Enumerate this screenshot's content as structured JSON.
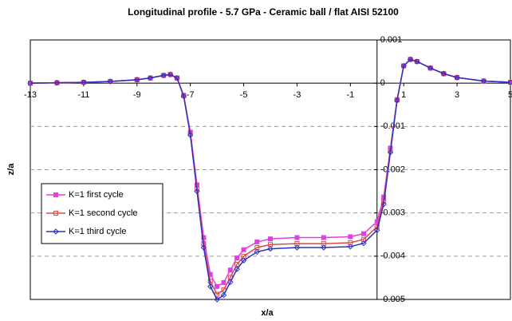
{
  "chart_data": {
    "type": "line",
    "title": "Longitudinal profile - 5.7 GPa - Ceramic ball / flat AISI 52100",
    "x_label": "x/a",
    "y_label": "z/a",
    "x": [
      -13,
      -12,
      -11,
      -10,
      -9,
      -8.5,
      -8,
      -7.75,
      -7.5,
      -7.25,
      -7,
      -6.75,
      -6.5,
      -6.25,
      -6,
      -5.75,
      -5.5,
      -5.25,
      -5,
      -4.5,
      -4,
      -3,
      -2,
      -1,
      -0.5,
      0,
      0.25,
      0.5,
      0.75,
      1,
      1.25,
      1.5,
      2,
      2.5,
      3,
      4,
      5
    ],
    "series": [
      {
        "name": "K=1 first cycle",
        "color": "#e040e0",
        "values": [
          0,
          1e-05,
          2e-05,
          4e-05,
          8e-05,
          0.00012,
          0.00018,
          0.0002,
          0.00012,
          -0.00028,
          -0.00113,
          -0.00235,
          -0.00357,
          -0.00442,
          -0.0047,
          -0.00461,
          -0.00432,
          -0.00404,
          -0.00385,
          -0.00367,
          -0.0036,
          -0.00357,
          -0.00357,
          -0.00355,
          -0.00348,
          -0.0032,
          -0.00263,
          -0.0015,
          -0.00038,
          0.0004,
          0.00055,
          0.0005,
          0.00035,
          0.00022,
          0.00013,
          5e-05,
          2e-05
        ]
      },
      {
        "name": "K=1 second cycle",
        "color": "#e04848",
        "values": [
          0,
          1e-05,
          2e-05,
          4e-05,
          8e-05,
          0.00012,
          0.00018,
          0.0002,
          0.00012,
          -0.00029,
          -0.00117,
          -0.00244,
          -0.00371,
          -0.00458,
          -0.00488,
          -0.00478,
          -0.00449,
          -0.00419,
          -0.004,
          -0.0038,
          -0.00373,
          -0.00371,
          -0.00371,
          -0.00369,
          -0.00361,
          -0.00332,
          -0.00273,
          -0.00156,
          -0.00039,
          0.0004,
          0.00055,
          0.0005,
          0.00035,
          0.00022,
          0.00013,
          5e-05,
          2e-05
        ]
      },
      {
        "name": "K=1 third cycle",
        "color": "#3030c0",
        "values": [
          0,
          1e-05,
          2e-05,
          4e-05,
          8e-05,
          0.00012,
          0.00018,
          0.0002,
          0.00012,
          -0.0003,
          -0.0012,
          -0.0025,
          -0.0038,
          -0.0047,
          -0.005,
          -0.0049,
          -0.0046,
          -0.0043,
          -0.0041,
          -0.0039,
          -0.00383,
          -0.0038,
          -0.0038,
          -0.00378,
          -0.0037,
          -0.0034,
          -0.0028,
          -0.0016,
          -0.0004,
          0.0004,
          0.00055,
          0.0005,
          0.00035,
          0.00022,
          0.00013,
          5e-05,
          2e-05
        ]
      }
    ],
    "xlim": [
      -13,
      5
    ],
    "xticks": [
      -13,
      -11,
      -9,
      -7,
      -5,
      -3,
      -1,
      1,
      3,
      5
    ],
    "ylim": [
      -0.005,
      0.001
    ],
    "yticks": [
      0.001,
      0,
      -0.001,
      -0.002,
      -0.003,
      -0.004,
      -0.005
    ],
    "grid": true,
    "legend": "lower left"
  }
}
